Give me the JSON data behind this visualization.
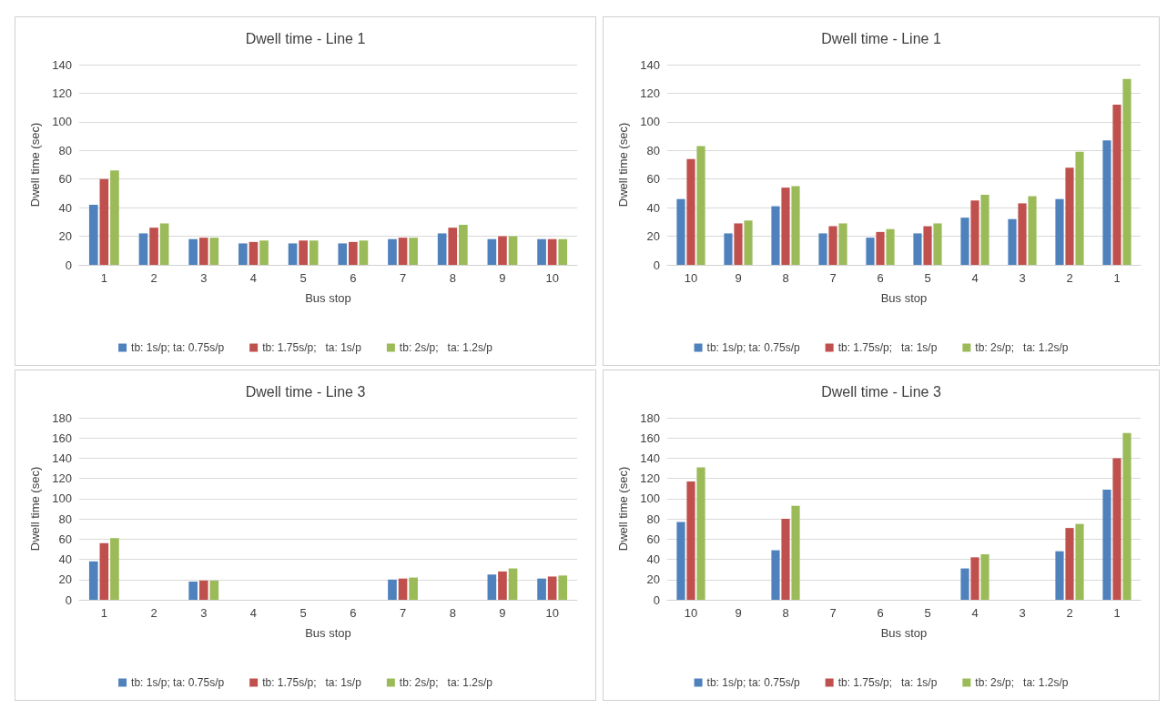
{
  "chart_data": [
    {
      "type": "bar",
      "title": "Dwell time - Line 1",
      "xlabel": "Bus stop",
      "ylabel": "Dwell time (sec)",
      "categories": [
        "1",
        "2",
        "3",
        "4",
        "5",
        "6",
        "7",
        "8",
        "9",
        "10"
      ],
      "ylim": [
        0,
        140
      ],
      "yticks": [
        0,
        20,
        40,
        60,
        80,
        100,
        120,
        140
      ],
      "grid": "y",
      "legend": "bottom",
      "series": [
        {
          "name": "tb: 1s/p; ta: 0.75s/p",
          "color": "#4f81bd",
          "values": [
            42,
            22,
            18,
            15,
            15,
            15,
            18,
            22,
            18,
            18
          ]
        },
        {
          "name": "tb: 1.75s/p;   ta: 1s/p",
          "color": "#c0504d",
          "values": [
            60,
            26,
            19,
            16,
            17,
            16,
            19,
            26,
            20,
            18
          ]
        },
        {
          "name": "tb: 2s/p;   ta: 1.2s/p",
          "color": "#9bbb59",
          "values": [
            66,
            29,
            19,
            17,
            17,
            17,
            19,
            28,
            20,
            18
          ]
        }
      ]
    },
    {
      "type": "bar",
      "title": "Dwell time - Line 1",
      "xlabel": "Bus stop",
      "ylabel": "Dwell time (sec)",
      "categories": [
        "10",
        "9",
        "8",
        "7",
        "6",
        "5",
        "4",
        "3",
        "2",
        "1"
      ],
      "ylim": [
        0,
        140
      ],
      "yticks": [
        0,
        20,
        40,
        60,
        80,
        100,
        120,
        140
      ],
      "grid": "y",
      "legend": "bottom",
      "series": [
        {
          "name": "tb: 1s/p; ta: 0.75s/p",
          "color": "#4f81bd",
          "values": [
            46,
            22,
            41,
            22,
            19,
            22,
            33,
            32,
            46,
            87
          ]
        },
        {
          "name": "tb: 1.75s/p;   ta: 1s/p",
          "color": "#c0504d",
          "values": [
            74,
            29,
            54,
            27,
            23,
            27,
            45,
            43,
            68,
            112
          ]
        },
        {
          "name": "tb: 2s/p;   ta: 1.2s/p",
          "color": "#9bbb59",
          "values": [
            83,
            31,
            55,
            29,
            25,
            29,
            49,
            48,
            79,
            130
          ]
        }
      ]
    },
    {
      "type": "bar",
      "title": "Dwell time - Line 3",
      "xlabel": "Bus stop",
      "ylabel": "Dwell time (sec)",
      "categories": [
        "1",
        "2",
        "3",
        "4",
        "5",
        "6",
        "7",
        "8",
        "9",
        "10"
      ],
      "ylim": [
        0,
        180
      ],
      "yticks": [
        0,
        20,
        40,
        60,
        80,
        100,
        120,
        140,
        160,
        180
      ],
      "grid": "y",
      "legend": "bottom",
      "series": [
        {
          "name": "tb: 1s/p; ta: 0.75s/p",
          "color": "#4f81bd",
          "values": [
            38,
            null,
            18,
            null,
            null,
            null,
            20,
            null,
            25,
            21
          ]
        },
        {
          "name": "tb: 1.75s/p;   ta: 1s/p",
          "color": "#c0504d",
          "values": [
            56,
            null,
            19,
            null,
            null,
            null,
            21,
            null,
            28,
            23
          ]
        },
        {
          "name": "tb: 2s/p;   ta: 1.2s/p",
          "color": "#9bbb59",
          "values": [
            61,
            null,
            19,
            null,
            null,
            null,
            22,
            null,
            31,
            24
          ]
        }
      ]
    },
    {
      "type": "bar",
      "title": "Dwell time - Line 3",
      "xlabel": "Bus stop",
      "ylabel": "Dwell time (sec)",
      "categories": [
        "10",
        "9",
        "8",
        "7",
        "6",
        "5",
        "4",
        "3",
        "2",
        "1"
      ],
      "ylim": [
        0,
        180
      ],
      "yticks": [
        0,
        20,
        40,
        60,
        80,
        100,
        120,
        140,
        160,
        180
      ],
      "grid": "y",
      "legend": "bottom",
      "series": [
        {
          "name": "tb: 1s/p; ta: 0.75s/p",
          "color": "#4f81bd",
          "values": [
            77,
            null,
            49,
            null,
            null,
            null,
            31,
            null,
            48,
            109
          ]
        },
        {
          "name": "tb: 1.75s/p;   ta: 1s/p",
          "color": "#c0504d",
          "values": [
            117,
            null,
            80,
            null,
            null,
            null,
            42,
            null,
            71,
            140
          ]
        },
        {
          "name": "tb: 2s/p;   ta: 1.2s/p",
          "color": "#9bbb59",
          "values": [
            131,
            null,
            93,
            null,
            null,
            null,
            45,
            null,
            75,
            165
          ]
        }
      ]
    }
  ]
}
